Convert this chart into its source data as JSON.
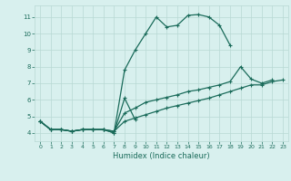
{
  "xlabel": "Humidex (Indice chaleur)",
  "x": [
    0,
    1,
    2,
    3,
    4,
    5,
    6,
    7,
    8,
    9,
    10,
    11,
    12,
    13,
    14,
    15,
    16,
    17,
    18,
    19,
    20,
    21,
    22,
    23
  ],
  "line1": [
    4.7,
    4.2,
    4.2,
    4.1,
    4.2,
    4.2,
    4.2,
    4.0,
    7.8,
    9.0,
    10.0,
    11.0,
    10.4,
    10.5,
    11.1,
    11.15,
    11.0,
    10.5,
    9.3,
    null,
    null,
    null,
    null,
    null
  ],
  "line2": [
    4.7,
    4.2,
    4.2,
    4.1,
    4.2,
    4.2,
    4.2,
    4.0,
    6.1,
    4.8,
    null,
    null,
    null,
    null,
    null,
    null,
    null,
    null,
    null,
    null,
    null,
    null,
    null,
    null
  ],
  "line3": [
    4.7,
    4.2,
    4.2,
    4.1,
    4.2,
    4.2,
    4.2,
    4.1,
    5.2,
    5.5,
    5.85,
    6.0,
    6.15,
    6.3,
    6.5,
    6.6,
    6.75,
    6.9,
    7.1,
    8.0,
    7.25,
    7.0,
    7.2,
    null
  ],
  "line4": [
    4.7,
    4.2,
    4.2,
    4.1,
    4.2,
    4.2,
    4.2,
    4.1,
    4.7,
    4.9,
    5.1,
    5.3,
    5.5,
    5.65,
    5.8,
    5.95,
    6.1,
    6.3,
    6.5,
    6.7,
    6.9,
    6.9,
    7.1,
    7.2
  ],
  "color": "#1a6b5a",
  "bg_color": "#d8f0ee",
  "grid_color": "#b8d8d4",
  "ylim": [
    3.5,
    11.7
  ],
  "xlim": [
    -0.5,
    23.5
  ],
  "yticks": [
    4,
    5,
    6,
    7,
    8,
    9,
    10,
    11
  ],
  "xticks": [
    0,
    1,
    2,
    3,
    4,
    5,
    6,
    7,
    8,
    9,
    10,
    11,
    12,
    13,
    14,
    15,
    16,
    17,
    18,
    19,
    20,
    21,
    22,
    23
  ]
}
